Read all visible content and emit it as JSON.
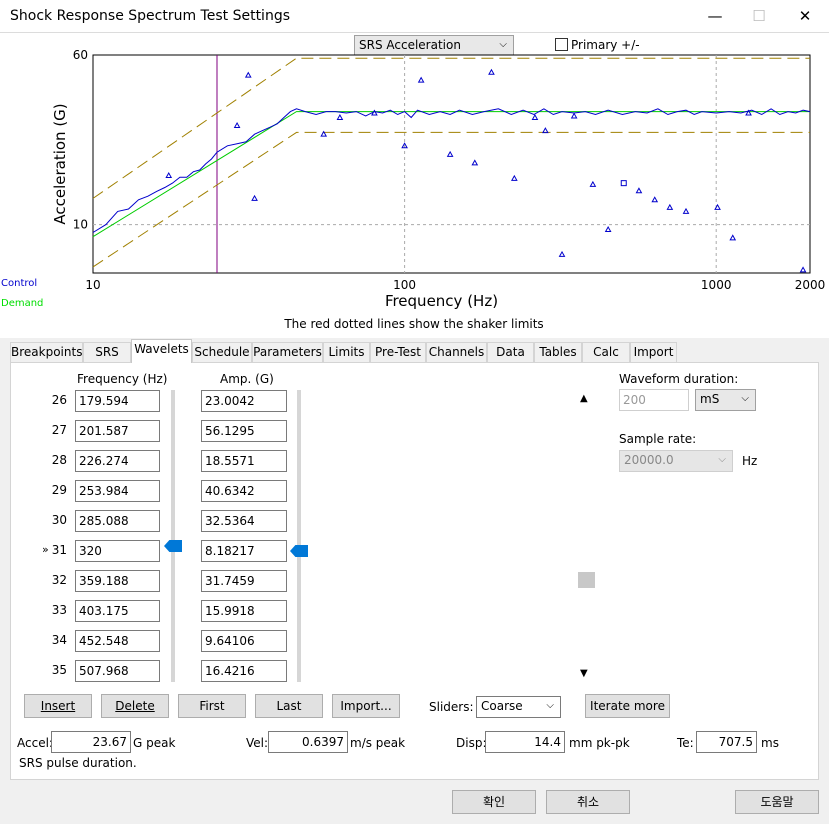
{
  "window": {
    "title": "Shock Response Spectrum Test Settings",
    "minimize": "—",
    "maximize": "☐",
    "close": "✕"
  },
  "chart_controls": {
    "view_select": "SRS Acceleration",
    "primary_checkbox_label": "Primary +/-",
    "primary_checked": false
  },
  "legend": {
    "control": "Control",
    "demand": "Demand",
    "control_color": "#0000cc",
    "demand_color": "#00dd00"
  },
  "chart_data": {
    "type": "line",
    "xlabel": "Frequency (Hz)",
    "ylabel": "Acceleration (G)",
    "x_scale": "log",
    "y_scale": "log",
    "xlim": [
      10,
      2000
    ],
    "ylim": [
      6,
      60
    ],
    "x_ticks": [
      "10",
      "100",
      "1000",
      "2000"
    ],
    "y_ticks": [
      "60",
      "10"
    ],
    "note": "The red dotted lines show the shaker limits",
    "marker_line_x": 25,
    "series": [
      {
        "role": "demand",
        "color": "#00cc00",
        "points": [
          [
            10,
            8.8
          ],
          [
            45,
            33
          ],
          [
            2000,
            33
          ]
        ]
      },
      {
        "role": "tolerance",
        "color": "#a08000",
        "points": [
          [
            10,
            13.2
          ],
          [
            45,
            58
          ],
          [
            2000,
            58
          ]
        ]
      },
      {
        "role": "tolerance",
        "color": "#a08000",
        "points": [
          [
            10,
            6.4
          ],
          [
            45,
            26.5
          ],
          [
            2000,
            26.5
          ]
        ]
      },
      {
        "role": "control",
        "color": "#0000cc",
        "points": [
          [
            10,
            9.2
          ],
          [
            11,
            10
          ],
          [
            12,
            11.5
          ],
          [
            13,
            11.8
          ],
          [
            14,
            13
          ],
          [
            15,
            13.5
          ],
          [
            16,
            14.2
          ],
          [
            17,
            14.8
          ],
          [
            18,
            15.5
          ],
          [
            19,
            16.5
          ],
          [
            20,
            16.5
          ],
          [
            21,
            17.5
          ],
          [
            22,
            17.8
          ],
          [
            23,
            19
          ],
          [
            24,
            20
          ],
          [
            25,
            21.5
          ],
          [
            27,
            23
          ],
          [
            29,
            23.5
          ],
          [
            31,
            24
          ],
          [
            33,
            26
          ],
          [
            35,
            27
          ],
          [
            37,
            28
          ],
          [
            39,
            29
          ],
          [
            41,
            31
          ],
          [
            43,
            33
          ],
          [
            45,
            34
          ],
          [
            48,
            33
          ],
          [
            52,
            32
          ],
          [
            56,
            33
          ],
          [
            60,
            33
          ],
          [
            65,
            32.5
          ],
          [
            70,
            33
          ],
          [
            75,
            31.5
          ],
          [
            80,
            33
          ],
          [
            85,
            32.5
          ],
          [
            90,
            33.5
          ],
          [
            95,
            32
          ],
          [
            100,
            33
          ],
          [
            105,
            31
          ],
          [
            110,
            33.5
          ],
          [
            120,
            32
          ],
          [
            130,
            33
          ],
          [
            140,
            32
          ],
          [
            150,
            33.5
          ],
          [
            165,
            32
          ],
          [
            180,
            33
          ],
          [
            200,
            34
          ],
          [
            220,
            32
          ],
          [
            240,
            33.5
          ],
          [
            260,
            32
          ],
          [
            280,
            34
          ],
          [
            300,
            32
          ],
          [
            320,
            33
          ],
          [
            350,
            32.5
          ],
          [
            380,
            33
          ],
          [
            410,
            32
          ],
          [
            450,
            33.5
          ],
          [
            500,
            32
          ],
          [
            550,
            33
          ],
          [
            600,
            32.5
          ],
          [
            650,
            34
          ],
          [
            700,
            32
          ],
          [
            750,
            33
          ],
          [
            800,
            33.5
          ],
          [
            850,
            32
          ],
          [
            900,
            33
          ],
          [
            1000,
            32.5
          ],
          [
            1100,
            33
          ],
          [
            1200,
            32.5
          ],
          [
            1300,
            33.5
          ],
          [
            1400,
            32
          ],
          [
            1500,
            34
          ],
          [
            1600,
            32
          ],
          [
            1700,
            33
          ],
          [
            1800,
            32.5
          ],
          [
            1900,
            33.5
          ],
          [
            2000,
            33
          ]
        ]
      }
    ],
    "wavelet_points": [
      [
        17.5,
        16.8
      ],
      [
        29,
        28.5
      ],
      [
        31.5,
        48.5
      ],
      [
        33,
        13.2
      ],
      [
        55,
        26
      ],
      [
        62,
        31
      ],
      [
        80,
        32.5
      ],
      [
        100,
        23
      ],
      [
        113,
        46
      ],
      [
        140,
        21
      ],
      [
        168,
        19.2
      ],
      [
        190,
        50
      ],
      [
        225,
        16.3
      ],
      [
        262,
        31
      ],
      [
        283,
        27
      ],
      [
        320,
        7.3
      ],
      [
        350,
        31.5
      ],
      [
        402,
        15.3
      ],
      [
        450,
        9.5
      ],
      [
        505,
        15.5
      ],
      [
        565,
        14.3
      ],
      [
        635,
        13
      ],
      [
        710,
        12
      ],
      [
        800,
        11.5
      ],
      [
        1010,
        12
      ],
      [
        1130,
        8.7
      ],
      [
        1270,
        32.5
      ],
      [
        1900,
        6.2
      ]
    ]
  },
  "tabs": [
    "Breakpoints",
    "SRS",
    "Wavelets",
    "Schedule",
    "Parameters",
    "Limits",
    "Pre-Test",
    "Channels",
    "Data",
    "Tables",
    "Calc",
    "Import"
  ],
  "active_tab": "Wavelets",
  "wavelets": {
    "freq_header": "Frequency (Hz)",
    "amp_header": "Amp. (G)",
    "current_marker": "»",
    "rows": [
      {
        "num": "26",
        "freq": "179.594",
        "amp": "23.0042"
      },
      {
        "num": "27",
        "freq": "201.587",
        "amp": "56.1295"
      },
      {
        "num": "28",
        "freq": "226.274",
        "amp": "18.5571"
      },
      {
        "num": "29",
        "freq": "253.984",
        "amp": "40.6342"
      },
      {
        "num": "30",
        "freq": "285.088",
        "amp": "32.5364"
      },
      {
        "num": "31",
        "freq": "320",
        "amp": "8.18217"
      },
      {
        "num": "32",
        "freq": "359.188",
        "amp": "31.7459"
      },
      {
        "num": "33",
        "freq": "403.175",
        "amp": "15.9918"
      },
      {
        "num": "34",
        "freq": "452.548",
        "amp": "9.64106"
      },
      {
        "num": "35",
        "freq": "507.968",
        "amp": "16.4216"
      }
    ],
    "buttons": {
      "insert": "Insert",
      "delete": "Delete",
      "first": "First",
      "last": "Last",
      "import": "Import..."
    },
    "sliders_label": "Sliders:",
    "sliders_value": "Coarse",
    "iterate_button": "Iterate more",
    "waveform_duration_label": "Waveform duration:",
    "waveform_duration_value": "200",
    "waveform_unit": "mS",
    "sample_rate_label": "Sample rate:",
    "sample_rate_value": "20000.0",
    "sample_rate_unit": "Hz"
  },
  "results": {
    "accel_label": "Accel:",
    "accel_value": "23.67",
    "accel_unit": "G peak",
    "vel_label": "Vel:",
    "vel_value": "0.6397",
    "vel_unit": "m/s peak",
    "disp_label": "Disp:",
    "disp_value": "14.4",
    "disp_unit": "mm pk-pk",
    "te_label": "Te:",
    "te_value": "707.5",
    "te_unit": "ms",
    "status": "SRS pulse duration."
  },
  "footer": {
    "ok": "확인",
    "cancel": "취소",
    "help": "도움말"
  }
}
